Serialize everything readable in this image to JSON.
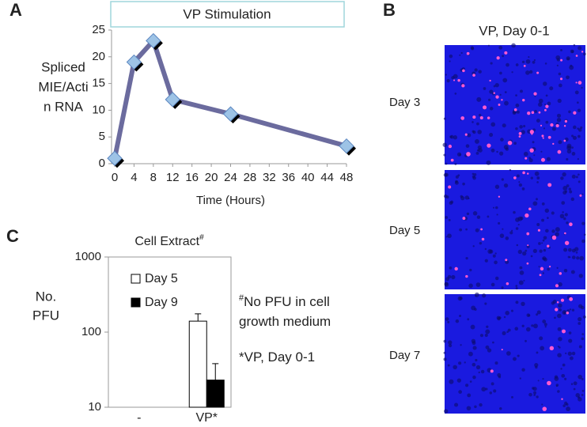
{
  "panel_labels": [
    "A",
    "B",
    "C"
  ],
  "image_panel": {
    "title": "VP, Day 0-1",
    "labels": [
      "Day 3",
      "Day 5",
      "Day 7"
    ]
  },
  "chart_data": [
    {
      "type": "line",
      "title": "VP Stimulation",
      "ylabel": [
        "Spliced",
        "MIE/Acti",
        "n RNA"
      ],
      "xlabel": "Time (Hours)",
      "x": [
        0,
        4,
        8,
        12,
        24,
        48
      ],
      "values": [
        1,
        19,
        23,
        12,
        9.3,
        3.3
      ],
      "color": "#6b6b9e",
      "marker_color": "#9dc3e6",
      "xlim": [
        0,
        48
      ],
      "xticks": [
        0,
        4,
        8,
        12,
        16,
        20,
        24,
        28,
        32,
        36,
        40,
        44,
        48
      ],
      "ylim": [
        0,
        25
      ],
      "yticks": [
        0,
        5,
        10,
        15,
        20,
        25
      ]
    },
    {
      "type": "bar",
      "title": "Cell Extract",
      "title_superscript": "#",
      "ylabel": [
        "No.",
        "PFU"
      ],
      "log_scale": true,
      "categories": [
        "-",
        "VP*"
      ],
      "series": [
        {
          "name": "Day 5",
          "color": "#ffffff",
          "values": [
            null,
            140
          ],
          "errors": [
            null,
            35
          ]
        },
        {
          "name": "Day 9",
          "color": "#000000",
          "values": [
            null,
            23
          ],
          "errors": [
            null,
            15
          ]
        }
      ],
      "ylim": [
        10,
        1000
      ],
      "yticks": [
        10,
        100,
        1000
      ],
      "annotations": [
        {
          "superscript": "#",
          "lines": [
            "No PFU in cell",
            "growth medium"
          ]
        },
        {
          "lines": [
            "*VP, Day 0-1"
          ]
        }
      ]
    }
  ]
}
